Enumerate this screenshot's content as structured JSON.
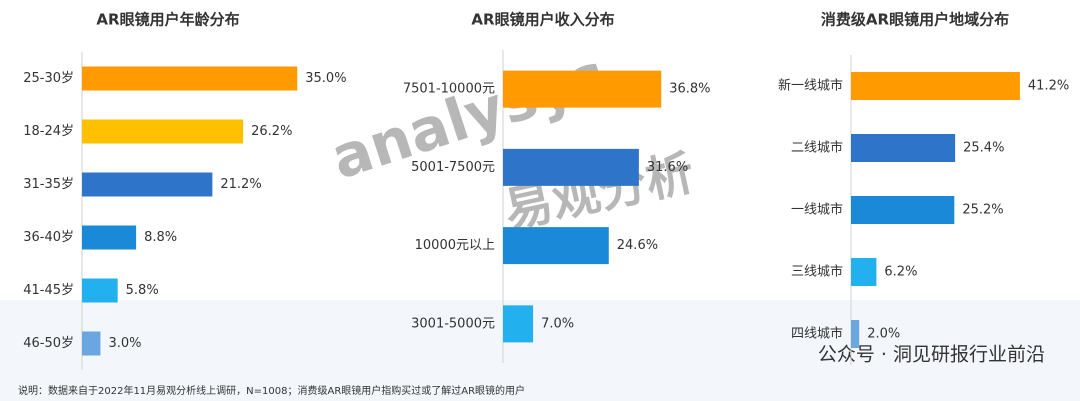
{
  "chart_data": [
    {
      "type": "hbar",
      "title": "AR眼镜用户年龄分布",
      "categories": [
        "25-30岁",
        "18-24岁",
        "31-35岁",
        "36-40岁",
        "41-45岁",
        "46-50岁"
      ],
      "values": [
        35.0,
        26.2,
        21.2,
        8.8,
        5.8,
        3.0
      ],
      "value_labels": [
        "35.0%",
        "26.2%",
        "21.2%",
        "8.8%",
        "5.8%",
        "3.0%"
      ],
      "colors": [
        "#ff9a00",
        "#ffc000",
        "#2e75c9",
        "#1a8ad8",
        "#22b0ef",
        "#6aa7e0"
      ],
      "xlim": [
        0,
        40
      ]
    },
    {
      "type": "hbar",
      "title": "AR眼镜用户收入分布",
      "categories": [
        "7501-10000元",
        "5001-7500元",
        "10000元以上",
        "3001-5000元"
      ],
      "values": [
        36.8,
        31.6,
        24.6,
        7.0
      ],
      "value_labels": [
        "36.8%",
        "31.6%",
        "24.6%",
        "7.0%"
      ],
      "colors": [
        "#ff9a00",
        "#2e75c9",
        "#1a8ad8",
        "#22b0ef"
      ],
      "xlim": [
        0,
        50
      ]
    },
    {
      "type": "hbar",
      "title": "消费级AR眼镜用户地域分布",
      "categories": [
        "新一线城市",
        "二线城市",
        "一线城市",
        "三线城市",
        "四线城市"
      ],
      "values": [
        41.2,
        25.4,
        25.2,
        6.2,
        2.0
      ],
      "value_labels": [
        "41.2%",
        "25.4%",
        "25.2%",
        "6.2%",
        "2.0%"
      ],
      "colors": [
        "#ff9a00",
        "#2e75c9",
        "#1a8ad8",
        "#22b0ef",
        "#6aa7e0"
      ],
      "xlim": [
        0,
        50
      ]
    }
  ],
  "watermark": {
    "logo": "analysys",
    "brand": "易观分析",
    "wechat": "公众号 · 洞见研报行业前沿"
  },
  "footnote": "说明：数据来自于2022年11月易观分析线上调研，N=1008；消费级AR眼镜用户指购买过或了解过AR眼镜的用户"
}
